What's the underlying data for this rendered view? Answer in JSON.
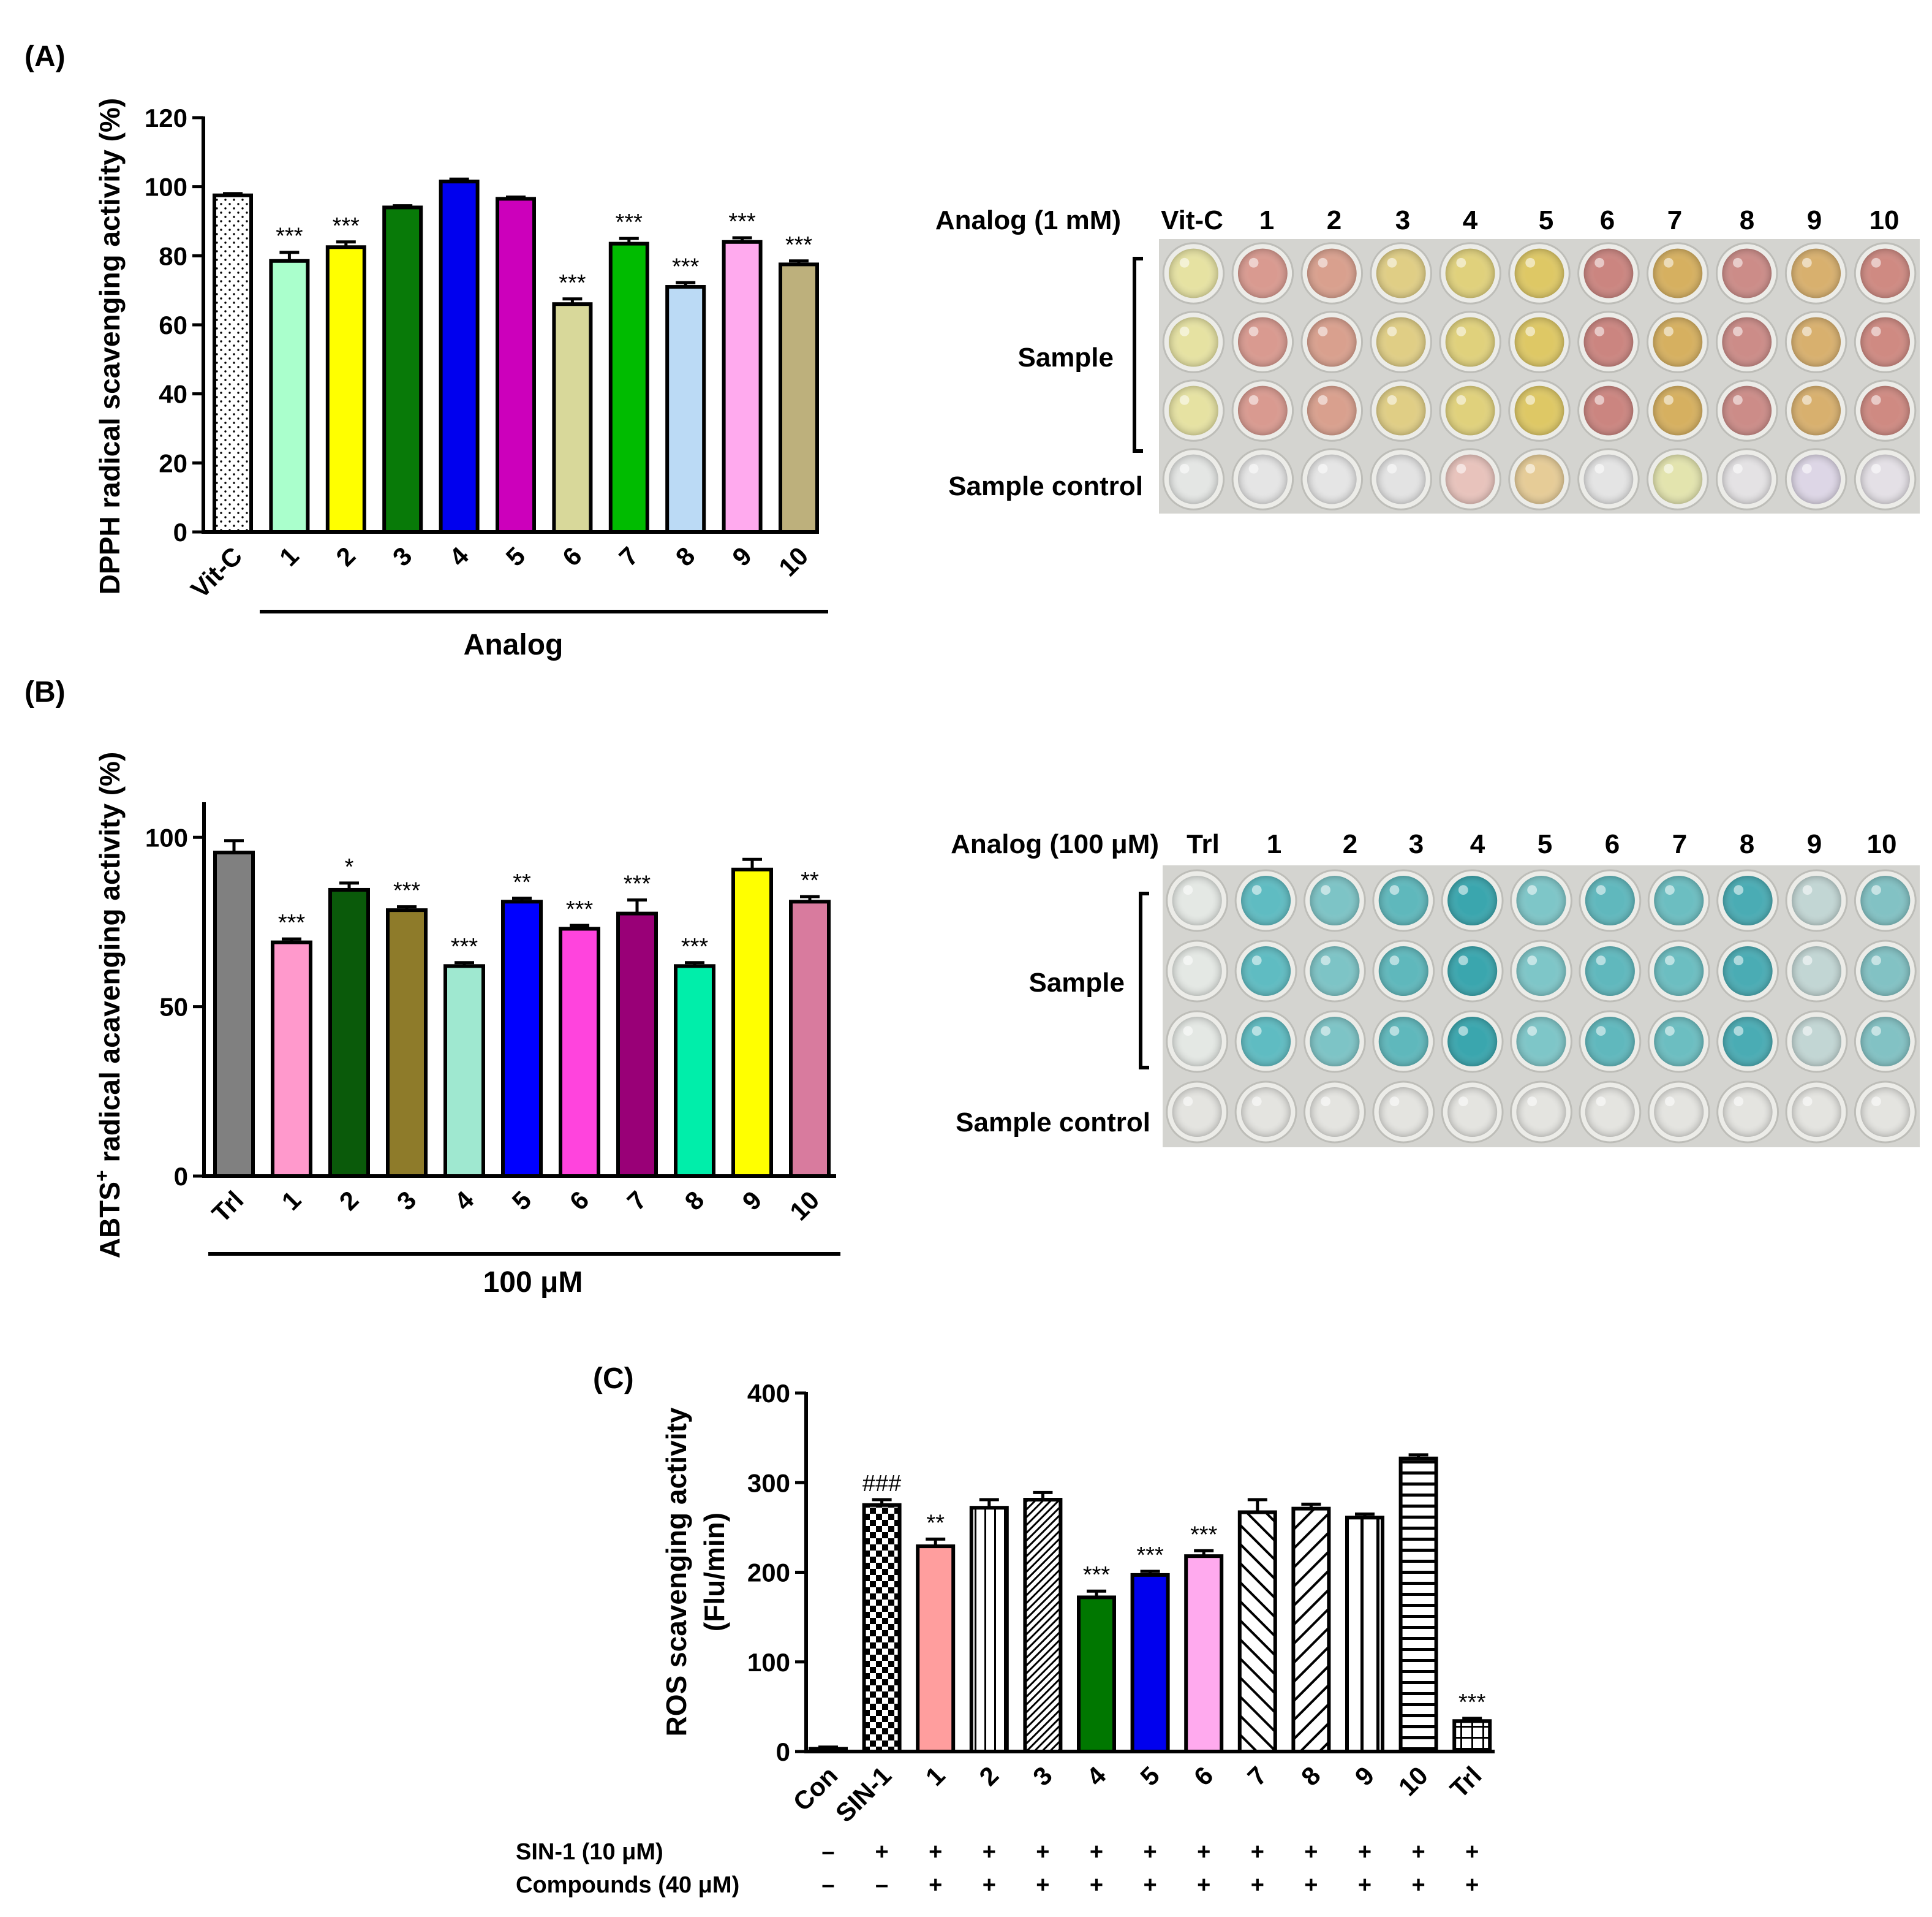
{
  "colors": {
    "axis": "#000000",
    "plate_bg": "#d4d4d0",
    "well_rim": "#ecece8"
  },
  "chart_data": [
    {
      "panel": "(A)",
      "type": "bar",
      "ylabel": "DPPH radical scavenging activity (%)",
      "xlabel": "Analog",
      "ylim": [
        0,
        120
      ],
      "yticks": [
        0,
        20,
        40,
        60,
        80,
        100,
        120
      ],
      "categories": [
        "Vit-C",
        "1",
        "2",
        "3",
        "4",
        "5",
        "6",
        "7",
        "8",
        "9",
        "10"
      ],
      "values": [
        97.5,
        78.5,
        82.5,
        94,
        101.5,
        96.5,
        66,
        83.5,
        71,
        84,
        77.5
      ],
      "errors": [
        0.5,
        2.5,
        1.5,
        0.5,
        0.7,
        0.5,
        1.5,
        1.5,
        1.2,
        1.2,
        1.0
      ],
      "significance": [
        "",
        "***",
        "***",
        "",
        "",
        "",
        "***",
        "***",
        "***",
        "***",
        "***"
      ],
      "colors": [
        "#ffffff",
        "#aaffcc",
        "#ffff00",
        "#087a08",
        "#0000ee",
        "#cc00bb",
        "#d8d89a",
        "#00bb00",
        "#bbdaf5",
        "#ffaaee",
        "#bdb07c"
      ],
      "patterns": [
        "dots",
        "",
        "",
        "",
        "",
        "",
        "",
        "",
        "",
        "",
        ""
      ]
    },
    {
      "panel": "(B)",
      "type": "bar",
      "ylabel_main": "ABTS",
      "ylabel_sup": "+",
      "ylabel_rest": " radical acavenging activity (%)",
      "xlabel": "100 μM",
      "ylim": [
        0,
        110
      ],
      "yticks": [
        0,
        50,
        100
      ],
      "categories": [
        "Trl",
        "1",
        "2",
        "3",
        "4",
        "5",
        "6",
        "7",
        "8",
        "9",
        "10"
      ],
      "values": [
        95.5,
        69,
        84.5,
        78.5,
        62,
        81,
        73,
        77.5,
        62,
        90.5,
        81
      ],
      "errors": [
        3.5,
        1,
        2,
        1,
        1,
        1,
        1,
        4,
        1,
        3,
        1.5
      ],
      "significance": [
        "",
        "***",
        "*",
        "***",
        "***",
        "**",
        "***",
        "***",
        "***",
        "",
        "**"
      ],
      "colors": [
        "#808080",
        "#ff99cc",
        "#0a5a0a",
        "#8e7b2a",
        "#9fe8d0",
        "#0000ff",
        "#ff44dd",
        "#990077",
        "#00eeaa",
        "#ffff00",
        "#d87b9e"
      ],
      "patterns": [
        "",
        "",
        "",
        "",
        "",
        "",
        "",
        "",
        "",
        "",
        ""
      ]
    },
    {
      "panel": "(C)",
      "type": "bar",
      "ylabel_line1": "ROS scavenging activity",
      "ylabel_line2": "(Flu/min)",
      "ylim": [
        0,
        400
      ],
      "yticks": [
        0,
        100,
        200,
        300,
        400
      ],
      "categories": [
        "Con",
        "SIN-1",
        "1",
        "2",
        "3",
        "4",
        "5",
        "6",
        "7",
        "8",
        "9",
        "10",
        "Trl"
      ],
      "values": [
        3,
        275,
        229,
        272,
        281,
        172,
        197,
        218,
        267,
        271,
        261,
        327,
        34
      ],
      "errors": [
        2,
        6,
        8,
        9,
        8,
        7,
        4,
        6,
        14,
        5,
        4,
        4,
        3
      ],
      "significance": [
        "",
        "###",
        "**",
        "",
        "",
        "***",
        "***",
        "***",
        "",
        "",
        "",
        "",
        "***"
      ],
      "colors": [
        "#000000",
        "#ffffff",
        "#ff9e9e",
        "#ffffff",
        "#ffffff",
        "#007700",
        "#0000ee",
        "#ffaaee",
        "#ffffff",
        "#ffffff",
        "#ffffff",
        "#ffffff",
        "#ffffff"
      ],
      "patterns": [
        "",
        "checker",
        "",
        "vlines",
        "diag-fine",
        "",
        "",
        "",
        "diag-back",
        "diag-fwd",
        "vlines-wide",
        "hlines",
        "grid"
      ],
      "treatments": [
        {
          "label": "SIN-1 (10 μM)",
          "marks": [
            "–",
            "+",
            "+",
            "+",
            "+",
            "+",
            "+",
            "+",
            "+",
            "+",
            "+",
            "+",
            "+"
          ]
        },
        {
          "label": "Compounds (40 μM)",
          "marks": [
            "–",
            "–",
            "+",
            "+",
            "+",
            "+",
            "+",
            "+",
            "+",
            "+",
            "+",
            "+",
            "+"
          ]
        }
      ]
    }
  ],
  "plates": [
    {
      "panel": "(A)",
      "header_label": "Analog (1 mM)",
      "columns": [
        "Vit-C",
        "1",
        "2",
        "3",
        "4",
        "5",
        "6",
        "7",
        "8",
        "9",
        "10"
      ],
      "sample_label": "Sample",
      "control_label": "Sample control",
      "sample_colors": [
        "#e6e2a2",
        "#d99a90",
        "#d9a08e",
        "#e0ce85",
        "#e0d17c",
        "#dec865",
        "#cb8580",
        "#d6b060",
        "#cc8c88",
        "#d8b06e",
        "#cf8a82"
      ],
      "control_colors": [
        "#e4e6e4",
        "#e5e5e5",
        "#e5e5e5",
        "#e3e3e3",
        "#e8c3bc",
        "#e6cc97",
        "#e4e4e4",
        "#e3e4ae",
        "#e4e2e4",
        "#ddd6e6",
        "#e4e0e6"
      ]
    },
    {
      "panel": "(B)",
      "header_label": "Analog (100 μM)",
      "columns": [
        "Trl",
        "1",
        "2",
        "3",
        "4",
        "5",
        "6",
        "7",
        "8",
        "9",
        "10"
      ],
      "sample_label": "Sample",
      "control_label": "Sample control",
      "sample_colors": [
        "#e4e8e4",
        "#5fbcc2",
        "#7dc4c6",
        "#5fb8bc",
        "#3aa6ae",
        "#7ec6c8",
        "#60b8bd",
        "#6cbec1",
        "#4aacb4",
        "#c2d6d4",
        "#82c2c4"
      ],
      "control_colors": [
        "#e4e4e0",
        "#e4e4e0",
        "#e4e4e0",
        "#e4e4e0",
        "#e4e4e0",
        "#e4e4e0",
        "#e4e4e0",
        "#e4e4e0",
        "#e4e4e0",
        "#e4e4e0",
        "#e4e4e0"
      ]
    }
  ]
}
